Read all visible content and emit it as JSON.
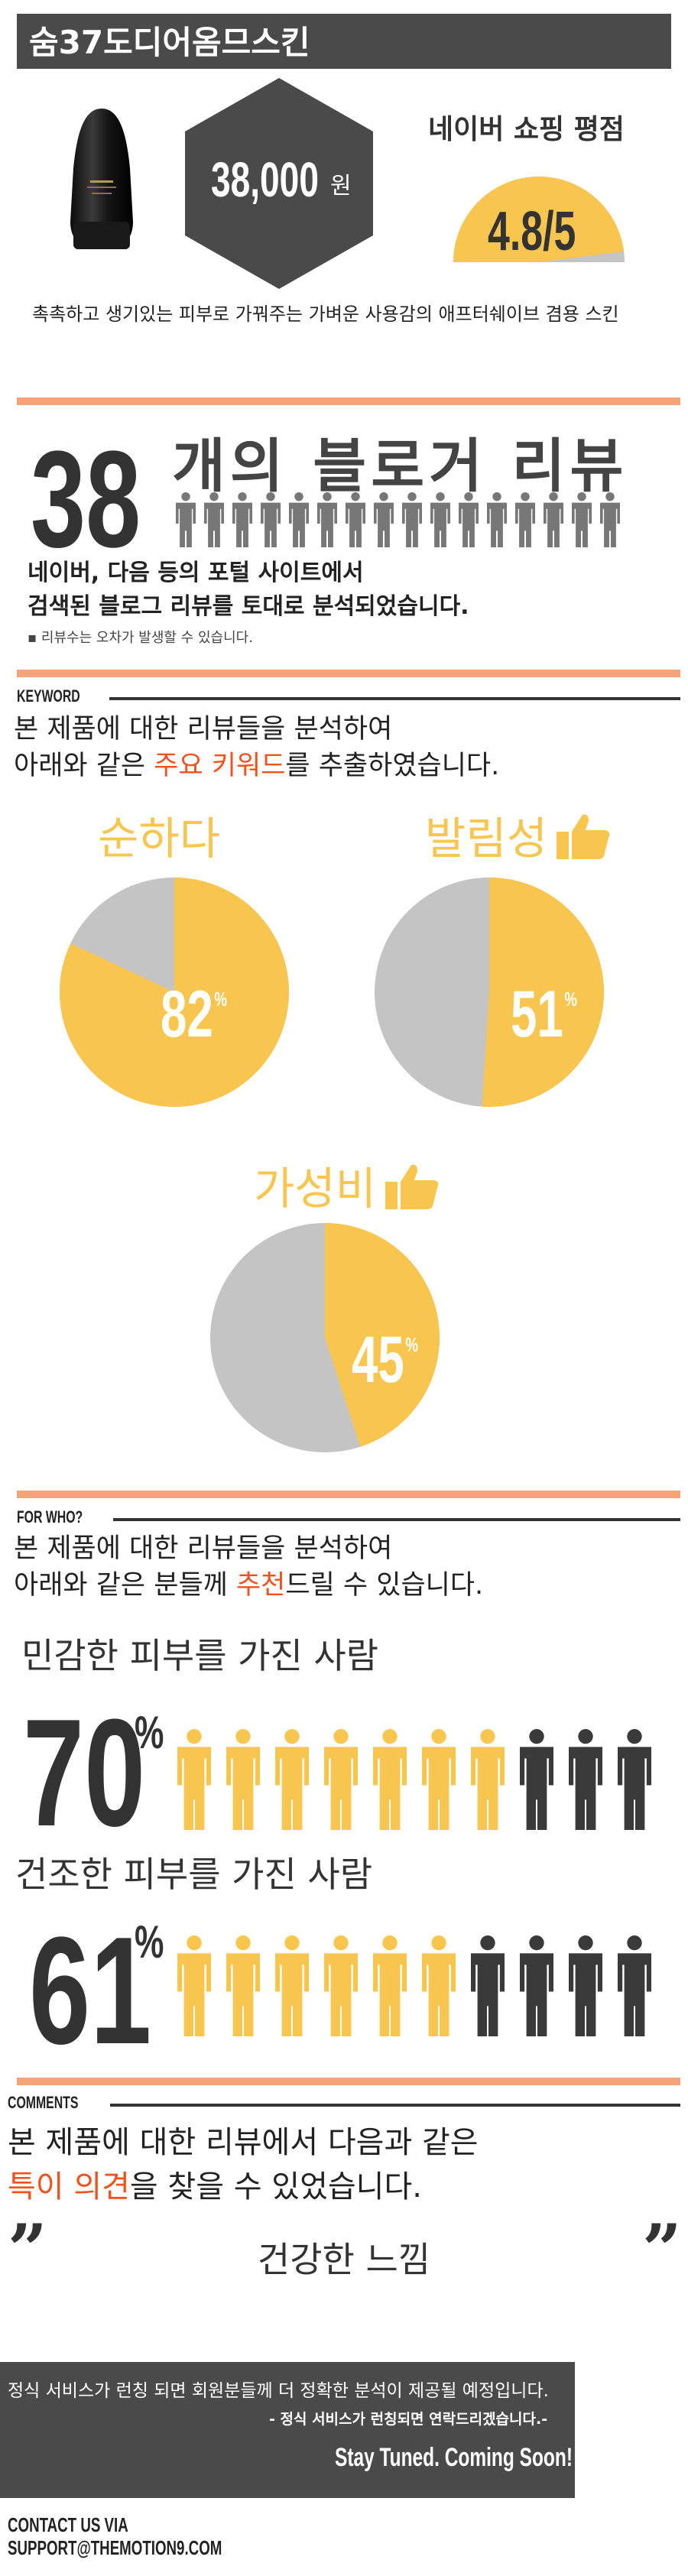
{
  "header": {
    "title": "숨37도디어옴므스킨"
  },
  "product": {
    "image_icon": "cosmetic-bottle-icon",
    "price_value": "38,000",
    "price_unit": "원",
    "rating_label": "네이버 쇼핑 평점",
    "rating_value": "4.8/5",
    "rating_fraction": 0.96,
    "description": "촉촉하고 생기있는 피부로 가꿔주는 가벼운 사용감의 애프터쉐이브 겸용 스킨"
  },
  "blogs": {
    "count": "38",
    "heading": "개의 블로거 리뷰",
    "people_icons": 16,
    "portal_line1": "네이버, 다음 등의 포털 사이트에서",
    "portal_line2": "검색된 블로그 리뷰를 토대로 분석되었습니다.",
    "note": "▪ 리뷰수는 오차가 발생할 수 있습니다."
  },
  "keyword": {
    "tag": "KEYWORD",
    "intro_line1": "본 제품에 대한 리뷰들을 분석하여",
    "intro_line2_pre": "아래와 같은 ",
    "intro_line2_hl": "주요 키워드",
    "intro_line2_post": "를 추출하였습니다.",
    "items": [
      {
        "label": "순하다",
        "value": "82",
        "pct": 82,
        "thumb": false
      },
      {
        "label": "발림성",
        "value": "51",
        "pct": 51,
        "thumb": true
      },
      {
        "label": "가성비",
        "value": "45",
        "pct": 45,
        "thumb": true
      }
    ],
    "pct_sign": "%"
  },
  "forwho": {
    "tag": "FOR WHO?",
    "intro_line1": "본 제품에 대한 리뷰들을 분석하여",
    "intro_line2_pre": "아래와 같은 분들께 ",
    "intro_line2_hl": "추천",
    "intro_line2_post": "드릴 수 있습니다.",
    "items": [
      {
        "label": "민감한 피부를 가진 사람",
        "value": "70",
        "highlighted": 7,
        "total": 10
      },
      {
        "label": "건조한 피부를 가진 사람",
        "value": "61",
        "highlighted": 6,
        "total": 10
      }
    ],
    "pct_sign": "%"
  },
  "comments": {
    "tag": "COMMENTS",
    "intro_line1": "본 제품에 대한 리뷰에서 다음과 같은",
    "intro_line2_hl": "특이 의견",
    "intro_line2_post": "을 찾을 수 있었습니다.",
    "quote_open": "”",
    "quote_close": "”",
    "quote": "건강한 느낌"
  },
  "footer": {
    "line1": "정식 서비스가 런칭 되면 회원분들께 더 정확한 분석이 제공될 예정입니다.",
    "line2": "- 정식 서비스가 런칭되면 연락드리겠습니다.-",
    "line3": "Stay Tuned. Coming Soon!",
    "contact1": "CONTACT US VIA",
    "contact2": "SUPPORT@THEMOTION9.COM"
  },
  "colors": {
    "accent_yellow": "#f8c54f",
    "accent_orange": "#f6a37a",
    "highlight_red": "#f2511b",
    "dark": "#4a4a4a",
    "grey": "#c4c4c4",
    "figure_dark": "#3a3a3a"
  }
}
